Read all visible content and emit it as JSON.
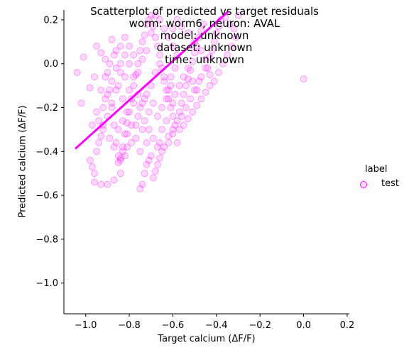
{
  "chart_data": {
    "type": "scatter",
    "title_lines": [
      "Scatterplot of predicted vs target residuals",
      "worm: worm6, neuron: AVAL",
      "model: unknown",
      "dataset: unknown",
      "time: unknown"
    ],
    "xlabel": "Target calcium (ΔF/F)",
    "ylabel": "Predicted calcium (ΔF/F)",
    "xlim": [
      -1.1,
      0.21
    ],
    "ylim": [
      -1.14,
      0.245
    ],
    "xticks": [
      -1.0,
      -0.8,
      -0.6,
      -0.4,
      -0.2,
      0.0,
      0.2
    ],
    "xtick_labels": [
      "−1.0",
      "−0.8",
      "−0.6",
      "−0.4",
      "−0.2",
      "0.0",
      "0.2"
    ],
    "yticks": [
      0.2,
      0.0,
      -0.2,
      -0.4,
      -0.6,
      -0.8,
      -1.0
    ],
    "ytick_labels": [
      "0.2",
      "0.0",
      "−0.2",
      "−0.4",
      "−0.6",
      "−0.8",
      "−1.0"
    ],
    "color": "#ff00ff",
    "legend": {
      "title": "label",
      "entries": [
        "test"
      ],
      "placement": "right"
    },
    "regression_line": {
      "x": [
        -1.045,
        -0.35
      ],
      "y": [
        -0.385,
        0.235
      ]
    },
    "series": [
      {
        "name": "test",
        "points": [
          [
            -1.04,
            -0.04
          ],
          [
            -1.01,
            0.03
          ],
          [
            -0.98,
            -0.11
          ],
          [
            -0.95,
            -0.22
          ],
          [
            -1.02,
            -0.18
          ],
          [
            -0.96,
            -0.54
          ],
          [
            -0.93,
            -0.55
          ],
          [
            -0.9,
            -0.55
          ],
          [
            -0.87,
            -0.53
          ],
          [
            -0.84,
            -0.5
          ],
          [
            -0.98,
            -0.44
          ],
          [
            -0.97,
            -0.47
          ],
          [
            -0.96,
            -0.5
          ],
          [
            -0.95,
            -0.4
          ],
          [
            -0.94,
            -0.36
          ],
          [
            -0.93,
            -0.33
          ],
          [
            -0.92,
            -0.3
          ],
          [
            -0.91,
            0.02
          ],
          [
            -0.9,
            -0.04
          ],
          [
            -0.89,
            -0.12
          ],
          [
            -0.88,
            -0.2
          ],
          [
            -0.87,
            -0.28
          ],
          [
            -0.86,
            -0.36
          ],
          [
            -0.85,
            -0.42
          ],
          [
            -0.84,
            -0.44
          ],
          [
            -0.83,
            -0.38
          ],
          [
            -0.82,
            -0.32
          ],
          [
            -0.81,
            -0.27
          ],
          [
            -0.8,
            -0.22
          ],
          [
            -0.79,
            -0.16
          ],
          [
            -0.78,
            -0.1
          ],
          [
            -0.77,
            -0.05
          ],
          [
            -0.76,
            0.0
          ],
          [
            -0.75,
            0.06
          ],
          [
            -0.74,
            0.1
          ],
          [
            -0.73,
            0.13
          ],
          [
            -0.72,
            0.18
          ],
          [
            -0.71,
            0.2
          ],
          [
            -0.7,
            0.22
          ],
          [
            -0.69,
            0.17
          ],
          [
            -0.68,
            0.12
          ],
          [
            -0.67,
            0.08
          ],
          [
            -0.66,
            0.04
          ],
          [
            -0.65,
            -0.02
          ],
          [
            -0.64,
            -0.08
          ],
          [
            -0.63,
            -0.12
          ],
          [
            -0.62,
            -0.16
          ],
          [
            -0.61,
            -0.2
          ],
          [
            -0.6,
            -0.24
          ],
          [
            -0.59,
            -0.28
          ],
          [
            -0.88,
            0.11
          ],
          [
            -0.86,
            0.06
          ],
          [
            -0.84,
            0.0
          ],
          [
            -0.82,
            -0.06
          ],
          [
            -0.8,
            -0.12
          ],
          [
            -0.78,
            -0.18
          ],
          [
            -0.76,
            -0.24
          ],
          [
            -0.74,
            -0.3
          ],
          [
            -0.72,
            -0.36
          ],
          [
            -0.7,
            -0.42
          ],
          [
            -0.75,
            -0.57
          ],
          [
            -0.74,
            -0.55
          ],
          [
            -0.73,
            -0.5
          ],
          [
            -0.72,
            -0.46
          ],
          [
            -0.71,
            -0.44
          ],
          [
            -0.69,
            -0.52
          ],
          [
            -0.68,
            -0.49
          ],
          [
            -0.67,
            -0.46
          ],
          [
            -0.66,
            -0.43
          ],
          [
            -0.65,
            -0.4
          ],
          [
            -0.62,
            -0.33
          ],
          [
            -0.6,
            -0.3
          ],
          [
            -0.58,
            -0.26
          ],
          [
            -0.57,
            -0.22
          ],
          [
            -0.56,
            -0.18
          ],
          [
            -0.55,
            -0.14
          ],
          [
            -0.54,
            -0.1
          ],
          [
            -0.53,
            -0.07
          ],
          [
            -0.52,
            -0.03
          ],
          [
            -0.51,
            0.01
          ],
          [
            -0.5,
            0.05
          ],
          [
            -0.49,
            0.08
          ],
          [
            -0.48,
            0.12
          ],
          [
            -0.47,
            0.15
          ],
          [
            -0.46,
            0.18
          ],
          [
            -0.45,
            0.02
          ],
          [
            -0.44,
            -0.02
          ],
          [
            -0.43,
            -0.05
          ],
          [
            -0.42,
            0.06
          ],
          [
            -0.41,
            0.1
          ],
          [
            -0.4,
            0.14
          ],
          [
            -0.39,
            0.17
          ],
          [
            -0.38,
            0.2
          ],
          [
            -0.36,
            0.21
          ],
          [
            -0.34,
            0.18
          ],
          [
            -0.32,
            0.16
          ],
          [
            -0.31,
            0.12
          ],
          [
            -0.3,
            0.22
          ],
          [
            -0.33,
            0.08
          ],
          [
            -0.35,
            0.04
          ],
          [
            -0.37,
            0.0
          ],
          [
            -0.39,
            -0.04
          ],
          [
            -0.41,
            -0.08
          ],
          [
            -0.43,
            -0.1
          ],
          [
            -0.45,
            -0.13
          ],
          [
            -0.47,
            -0.16
          ],
          [
            -0.49,
            -0.19
          ],
          [
            -0.51,
            -0.22
          ],
          [
            -0.53,
            -0.25
          ],
          [
            -0.55,
            -0.28
          ],
          [
            -0.57,
            -0.3
          ],
          [
            -0.6,
            -0.18
          ],
          [
            -0.62,
            -0.12
          ],
          [
            -0.64,
            -0.06
          ],
          [
            -0.66,
            0.0
          ],
          [
            -0.68,
            -0.04
          ],
          [
            -0.7,
            -0.1
          ],
          [
            -0.72,
            -0.14
          ],
          [
            -0.74,
            -0.18
          ],
          [
            -0.76,
            -0.14
          ],
          [
            -0.78,
            -0.06
          ],
          [
            -0.8,
            0.0
          ],
          [
            -0.82,
            0.04
          ],
          [
            -0.84,
            0.08
          ],
          [
            -0.86,
            -0.02
          ],
          [
            -0.88,
            -0.08
          ],
          [
            -0.9,
            -0.14
          ],
          [
            -0.92,
            -0.2
          ],
          [
            -0.94,
            -0.26
          ],
          [
            -0.93,
            -0.12
          ],
          [
            -0.91,
            -0.06
          ],
          [
            -0.89,
            0.0
          ],
          [
            -0.87,
            0.04
          ],
          [
            -0.85,
            -0.1
          ],
          [
            -0.83,
            -0.16
          ],
          [
            -0.81,
            -0.22
          ],
          [
            -0.79,
            -0.28
          ],
          [
            -0.77,
            -0.34
          ],
          [
            -0.75,
            -0.4
          ],
          [
            -0.73,
            -0.26
          ],
          [
            -0.71,
            -0.22
          ],
          [
            -0.69,
            -0.18
          ],
          [
            -0.67,
            -0.24
          ],
          [
            -0.65,
            -0.3
          ],
          [
            -0.63,
            -0.26
          ],
          [
            -0.61,
            -0.06
          ],
          [
            -0.59,
            -0.02
          ],
          [
            -0.58,
            0.04
          ],
          [
            -0.6,
            0.08
          ],
          [
            -0.62,
            0.12
          ],
          [
            -0.64,
            0.16
          ],
          [
            -0.66,
            0.2
          ],
          [
            -0.68,
            0.22
          ],
          [
            -0.7,
            0.14
          ],
          [
            -0.72,
            0.06
          ],
          [
            -0.74,
            0.02
          ],
          [
            -0.76,
            -0.04
          ],
          [
            -0.78,
            0.04
          ],
          [
            -0.8,
            0.08
          ],
          [
            -0.82,
            0.12
          ],
          [
            -0.84,
            -0.04
          ],
          [
            -0.86,
            -0.12
          ],
          [
            -0.88,
            -0.18
          ],
          [
            -0.9,
            -0.24
          ],
          [
            -0.92,
            -0.28
          ],
          [
            -0.89,
            -0.34
          ],
          [
            -0.87,
            -0.38
          ],
          [
            -0.85,
            -0.3
          ],
          [
            -0.83,
            -0.26
          ],
          [
            -0.81,
            -0.32
          ],
          [
            -0.79,
            -0.36
          ],
          [
            -0.77,
            -0.28
          ],
          [
            -0.75,
            -0.2
          ],
          [
            -0.73,
            -0.16
          ],
          [
            -0.71,
            -0.3
          ],
          [
            -0.69,
            -0.34
          ],
          [
            -0.67,
            -0.38
          ],
          [
            -0.65,
            -0.2
          ],
          [
            -0.63,
            -0.16
          ],
          [
            -0.61,
            -0.1
          ],
          [
            -0.59,
            -0.14
          ],
          [
            -0.57,
            -0.1
          ],
          [
            -0.55,
            -0.06
          ],
          [
            -0.53,
            -0.02
          ],
          [
            -0.51,
            -0.08
          ],
          [
            -0.49,
            -0.12
          ],
          [
            -0.47,
            -0.06
          ],
          [
            -0.45,
            -0.02
          ],
          [
            -0.43,
            0.03
          ],
          [
            -0.47,
            0.06
          ],
          [
            -0.5,
            0.1
          ],
          [
            -0.53,
            0.14
          ],
          [
            -0.56,
            0.17
          ],
          [
            -0.58,
            0.2
          ],
          [
            -0.6,
            0.16
          ],
          [
            -0.85,
            -0.45
          ],
          [
            -0.84,
            -0.43
          ],
          [
            -0.83,
            -0.4
          ],
          [
            -0.82,
            -0.42
          ],
          [
            -0.81,
            -0.38
          ],
          [
            -0.66,
            -0.36
          ],
          [
            -0.64,
            -0.38
          ],
          [
            -0.62,
            -0.36
          ],
          [
            -0.6,
            -0.32
          ],
          [
            -0.58,
            -0.36
          ],
          [
            -0.56,
            -0.24
          ],
          [
            -0.54,
            -0.2
          ],
          [
            -0.52,
            -0.16
          ],
          [
            -0.5,
            -0.12
          ],
          [
            -0.48,
            -0.08
          ],
          [
            -0.95,
            0.08
          ],
          [
            -0.93,
            0.05
          ],
          [
            -0.91,
            -0.16
          ],
          [
            -0.96,
            -0.06
          ],
          [
            -0.97,
            -0.28
          ],
          [
            0.0,
            -0.07
          ]
        ]
      }
    ]
  }
}
